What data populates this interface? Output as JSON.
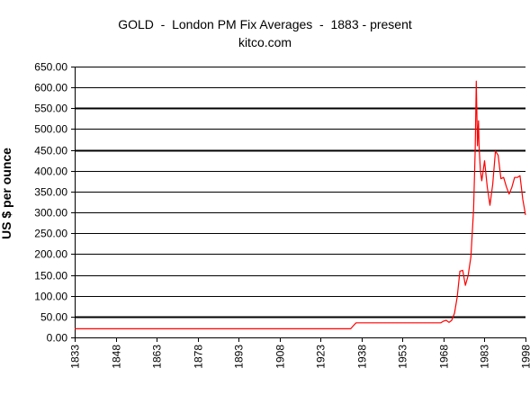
{
  "chart_data": {
    "type": "line",
    "title": "GOLD  -  London PM Fix Averages  -  1883 - present",
    "subtitle": "kitco.com",
    "xlabel": "",
    "ylabel": "US $ per ounce",
    "xlim": [
      1833,
      1998
    ],
    "ylim": [
      0,
      650
    ],
    "y_ticks": [
      "0.00",
      "50.00",
      "100.00",
      "150.00",
      "200.00",
      "250.00",
      "300.00",
      "350.00",
      "400.00",
      "450.00",
      "500.00",
      "550.00",
      "600.00",
      "650.00"
    ],
    "x_ticks": [
      "1833",
      "1848",
      "1863",
      "1878",
      "1893",
      "1908",
      "1923",
      "1938",
      "1953",
      "1968",
      "1983",
      "1998"
    ],
    "grid": true,
    "line_color": "#ff0000",
    "series": [
      {
        "x": [
          1833,
          1934,
          1935,
          1936,
          1937,
          1950,
          1955,
          1962,
          1967,
          1968,
          1969,
          1970,
          1971,
          1972,
          1973,
          1974,
          1975,
          1976,
          1977,
          1978,
          1979,
          1979.6,
          1980,
          1980.4,
          1980.8,
          1981,
          1981.5,
          1982,
          1983,
          1984,
          1985,
          1986,
          1987,
          1988,
          1989,
          1990,
          1991,
          1992,
          1993,
          1994,
          1995,
          1996,
          1997,
          1998
        ],
        "y": [
          20.67,
          20.67,
          28,
          35,
          35,
          35,
          35,
          35,
          35,
          39,
          41,
          36,
          41,
          58,
          97,
          159,
          161,
          125,
          148,
          193,
          306,
          450,
          615,
          460,
          520,
          459,
          400,
          376,
          424,
          361,
          317,
          368,
          447,
          437,
          381,
          384,
          362,
          344,
          360,
          384,
          384,
          388,
          331,
          294
        ]
      }
    ]
  }
}
